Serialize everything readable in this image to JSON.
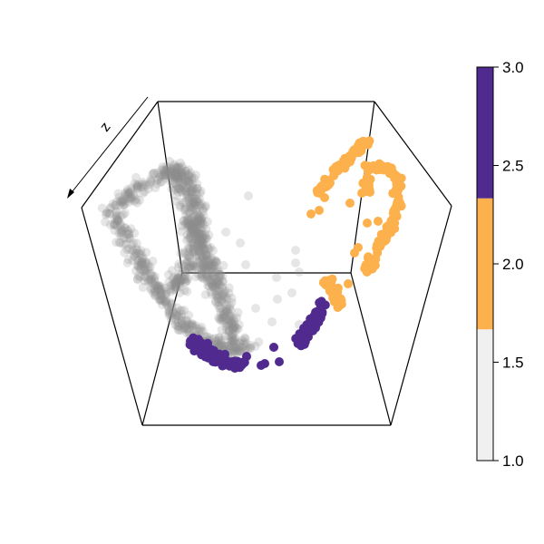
{
  "chart_data": {
    "type": "scatter",
    "subtype": "3d-scatter",
    "title": "",
    "axis_labels": {
      "z": "z"
    },
    "grid": false,
    "colors": {
      "low": "#f0f0f0",
      "mid": "#fdb14d",
      "high": "#512a8f",
      "gray_points": "#8c8c8c",
      "box": "#000000"
    },
    "colorbar": {
      "range": [
        1.0,
        3.0
      ],
      "ticks": [
        "1.0",
        "1.5",
        "2.0",
        "2.5",
        "3.0"
      ],
      "bands": [
        {
          "from": 1.0,
          "to": 1.667,
          "color": "#f0f0f0"
        },
        {
          "from": 1.667,
          "to": 2.333,
          "color": "#fdb14d"
        },
        {
          "from": 2.333,
          "to": 3.0,
          "color": "#512a8f"
        }
      ]
    },
    "series": [
      {
        "value": 1,
        "color": "#8c8c8c",
        "opacity": 0.22,
        "n_points": 1100
      },
      {
        "value": 2,
        "color": "#fdb14d",
        "opacity": 1.0,
        "n_points": 260
      },
      {
        "value": 3,
        "color": "#512a8f",
        "opacity": 1.0,
        "n_points": 210
      }
    ]
  }
}
